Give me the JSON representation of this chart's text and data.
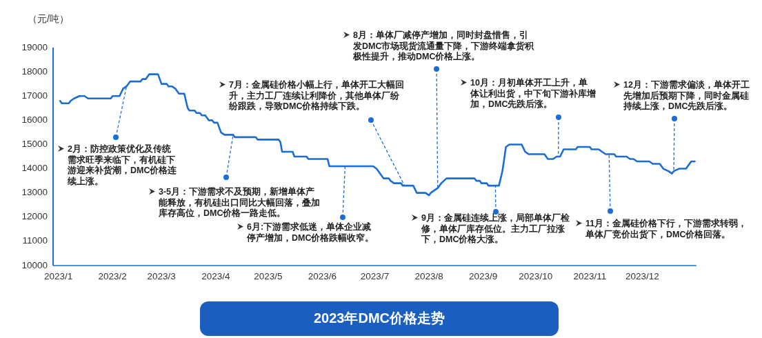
{
  "chart_data": {
    "type": "line",
    "title": "2023年DMC价格走势",
    "ylabel": "（元/吨）",
    "color": "#1a6dd4",
    "xlim": [
      "2022-12-29",
      "2024-01-01"
    ],
    "ylim": [
      10000,
      19000
    ],
    "yticks": [
      10000,
      11000,
      12000,
      13000,
      14000,
      15000,
      16000,
      17000,
      18000,
      19000
    ],
    "xticks": [
      {
        "value": "2023-01-01",
        "label": "2023/1"
      },
      {
        "value": "2023-02-01",
        "label": "2023/2"
      },
      {
        "value": "2023-03-01",
        "label": "2023/3"
      },
      {
        "value": "2023-04-01",
        "label": "2023/4"
      },
      {
        "value": "2023-05-01",
        "label": "2023/5"
      },
      {
        "value": "2023-06-01",
        "label": "2023/6"
      },
      {
        "value": "2023-07-01",
        "label": "2023/7"
      },
      {
        "value": "2023-08-01",
        "label": "2023/8"
      },
      {
        "value": "2023-09-01",
        "label": "2023/9"
      },
      {
        "value": "2023-10-01",
        "label": "2023/10"
      },
      {
        "value": "2023-11-01",
        "label": "2023/11"
      },
      {
        "value": "2023-12-01",
        "label": "2023/12"
      }
    ],
    "x": [
      "2023-01-02",
      "2023-01-03",
      "2023-01-07",
      "2023-01-08",
      "2023-01-10",
      "2023-01-13",
      "2023-01-16",
      "2023-01-18",
      "2023-01-31",
      "2023-02-01",
      "2023-02-05",
      "2023-02-07",
      "2023-02-09",
      "2023-02-11",
      "2023-02-17",
      "2023-02-18",
      "2023-02-20",
      "2023-02-22",
      "2023-02-27",
      "2023-03-01",
      "2023-03-04",
      "2023-03-05",
      "2023-03-07",
      "2023-03-09",
      "2023-03-10",
      "2023-03-11",
      "2023-03-14",
      "2023-03-16",
      "2023-03-17",
      "2023-03-20",
      "2023-03-21",
      "2023-03-23",
      "2023-03-24",
      "2023-03-26",
      "2023-03-28",
      "2023-03-30",
      "2023-03-31",
      "2023-04-02",
      "2023-04-04",
      "2023-04-06",
      "2023-04-11",
      "2023-04-12",
      "2023-04-24",
      "2023-04-25",
      "2023-05-07",
      "2023-05-08",
      "2023-05-09",
      "2023-05-15",
      "2023-05-16",
      "2023-05-23",
      "2023-05-24",
      "2023-06-04",
      "2023-06-05",
      "2023-06-30",
      "2023-07-02",
      "2023-07-03",
      "2023-07-06",
      "2023-07-09",
      "2023-07-10",
      "2023-07-12",
      "2023-07-16",
      "2023-07-17",
      "2023-07-23",
      "2023-07-25",
      "2023-07-30",
      "2023-08-01",
      "2023-08-02",
      "2023-08-04",
      "2023-08-06",
      "2023-08-08",
      "2023-08-11",
      "2023-08-27",
      "2023-08-28",
      "2023-08-30",
      "2023-08-31",
      "2023-09-03",
      "2023-09-04",
      "2023-09-10",
      "2023-09-12",
      "2023-09-14",
      "2023-09-16",
      "2023-09-23",
      "2023-09-25",
      "2023-09-27",
      "2023-10-06",
      "2023-10-08",
      "2023-10-11",
      "2023-10-13",
      "2023-10-15",
      "2023-10-17",
      "2023-10-24",
      "2023-10-25",
      "2023-11-01",
      "2023-11-02",
      "2023-11-06",
      "2023-11-08",
      "2023-11-10",
      "2023-11-15",
      "2023-11-16",
      "2023-11-22",
      "2023-11-24",
      "2023-11-26",
      "2023-11-28",
      "2023-12-05",
      "2023-12-07",
      "2023-12-11",
      "2023-12-13",
      "2023-12-16",
      "2023-12-18",
      "2023-12-19",
      "2023-12-22",
      "2023-12-26",
      "2023-12-27",
      "2023-12-29",
      "2023-12-31"
    ],
    "values": [
      16800,
      16700,
      16700,
      16800,
      16900,
      17000,
      17000,
      16900,
      16900,
      17000,
      17000,
      17300,
      17400,
      17600,
      17600,
      17700,
      17700,
      17900,
      17900,
      17500,
      17500,
      17400,
      17400,
      17300,
      17200,
      17100,
      17100,
      16500,
      16400,
      16400,
      16300,
      16300,
      16200,
      16200,
      16000,
      16000,
      15900,
      15900,
      15500,
      15400,
      15400,
      15300,
      15300,
      15200,
      15200,
      15100,
      14700,
      14700,
      14500,
      14500,
      14400,
      14400,
      14100,
      14100,
      14000,
      13900,
      13600,
      13600,
      13500,
      13400,
      13400,
      13300,
      13300,
      13000,
      13000,
      12900,
      13000,
      13100,
      13200,
      13400,
      13600,
      13600,
      13500,
      13500,
      13400,
      13400,
      13300,
      13300,
      13900,
      14900,
      15000,
      15000,
      14700,
      14600,
      14600,
      14400,
      14400,
      14500,
      14500,
      14800,
      14800,
      14900,
      14900,
      14800,
      14800,
      14700,
      14600,
      14600,
      14500,
      14500,
      14400,
      14400,
      14300,
      14300,
      14200,
      14200,
      14000,
      13900,
      13800,
      13900,
      14000,
      14000,
      14100,
      14300,
      14300
    ],
    "annotations": [
      {
        "text": "2月：防控政策优化及传统需求旺季来临下，有机硅下游迎来补货潮，DMC价格连续上涨。",
        "x": "2023-02-09",
        "y": 17400
      },
      {
        "text": "3-5月：下游需求不及预期，新增单体产能释放，有机硅出口同比大幅回落，叠加库存高位，DMC价格一路走低。",
        "x": "2023-04-11",
        "y": 15400
      },
      {
        "text": "6月:下游需求低迷，单体企业减停产增加，DMC价格跌幅收窄。",
        "x": "2023-06-14",
        "y": 14100
      },
      {
        "text": "7月：金属硅价格小幅上行，单体开工大幅回升，主力工厂连续让利降价，其他单体厂纷纷跟跌，导致DMC价格持续下跌。",
        "x": "2023-07-18",
        "y": 13300
      },
      {
        "text": "8月：单体厂减停产增加，同时封盘惜售，引发DMC市场现货流通量下降，下游终端拿货积极性提升，推动DMC价格上涨。",
        "x": "2023-08-06",
        "y": 13200
      },
      {
        "text": "9月：金属硅连续上涨，局部单体厂检修，单体厂库存低位。主力工厂拉涨下，DMC价格大涨。",
        "x": "2023-09-08",
        "y": 13300
      },
      {
        "text": "10月：月初单体开工上升，单体让利出货，中下旬下游补库增加，DMC先跌后涨。",
        "x": "2023-10-14",
        "y": 14500
      },
      {
        "text": "11月：金属硅价格下行，下游需求转弱，单体厂竞价出货下，DMC价格回落。",
        "x": "2023-11-12",
        "y": 14600
      },
      {
        "text": "12月：下游需求偏淡，单体开工先增加后预期下降，同时金属硅持续上涨，DMC先跌后涨。",
        "x": "2023-12-19",
        "y": 13900
      }
    ]
  }
}
